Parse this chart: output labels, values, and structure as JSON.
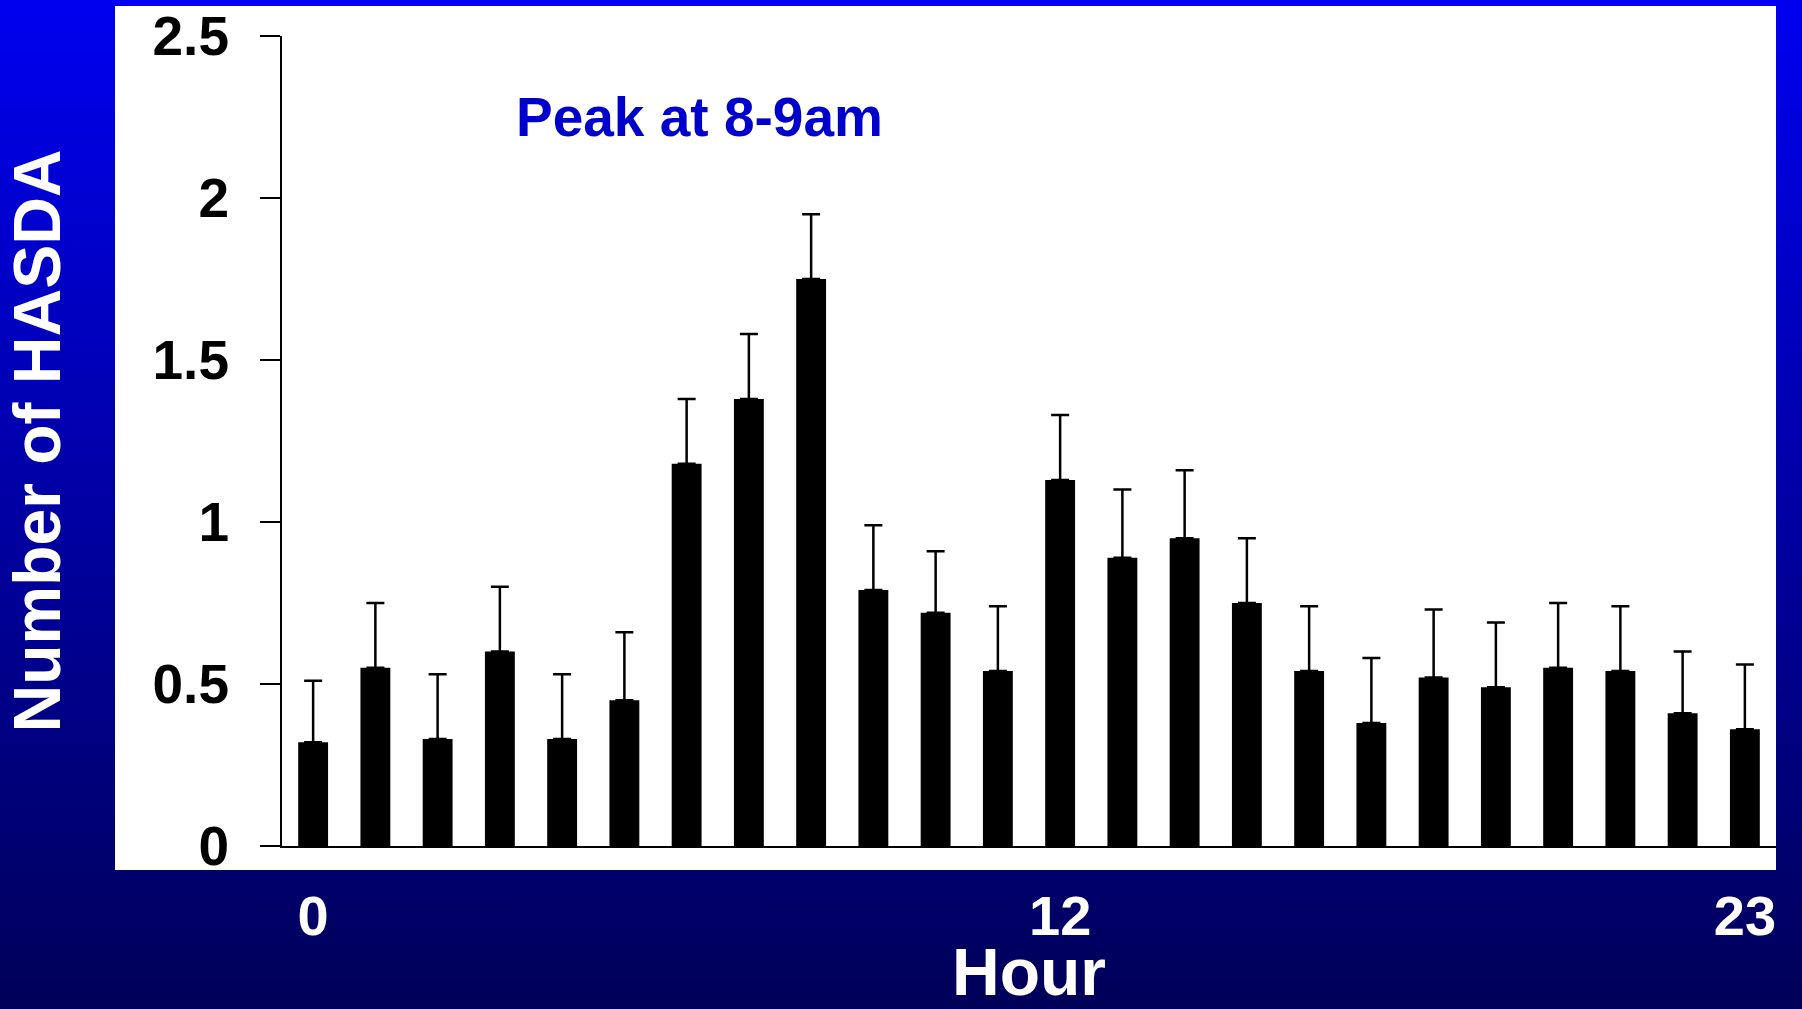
{
  "chart_data": {
    "type": "bar",
    "xlabel": "Hour",
    "ylabel": "Number of HASDA",
    "annotations": [
      "Peak at 8-9am"
    ],
    "x": [
      0,
      1,
      2,
      3,
      4,
      5,
      6,
      7,
      8,
      9,
      10,
      11,
      12,
      13,
      14,
      15,
      16,
      17,
      18,
      19,
      20,
      21,
      22,
      23
    ],
    "values": [
      0.32,
      0.55,
      0.33,
      0.6,
      0.33,
      0.45,
      1.18,
      1.38,
      1.75,
      0.79,
      0.72,
      0.54,
      1.13,
      0.89,
      0.95,
      0.75,
      0.54,
      0.38,
      0.52,
      0.49,
      0.55,
      0.54,
      0.41,
      0.36
    ],
    "errors": [
      [
        0.32,
        0.51
      ],
      [
        0.55,
        0.75
      ],
      [
        0.33,
        0.53
      ],
      [
        0.6,
        0.8
      ],
      [
        0.33,
        0.53
      ],
      [
        0.45,
        0.66
      ],
      [
        1.18,
        1.38
      ],
      [
        1.38,
        1.58
      ],
      [
        1.75,
        1.95
      ],
      [
        0.79,
        0.99
      ],
      [
        0.72,
        0.91
      ],
      [
        0.54,
        0.74
      ],
      [
        1.13,
        1.33
      ],
      [
        0.89,
        1.1
      ],
      [
        0.95,
        1.16
      ],
      [
        0.75,
        0.95
      ],
      [
        0.54,
        0.74
      ],
      [
        0.38,
        0.58
      ],
      [
        0.52,
        0.73
      ],
      [
        0.49,
        0.69
      ],
      [
        0.55,
        0.75
      ],
      [
        0.54,
        0.74
      ],
      [
        0.41,
        0.6
      ],
      [
        0.36,
        0.56
      ]
    ],
    "color": "#000000",
    "xlim": [
      -0.5,
      23.5
    ],
    "xticks": [
      0,
      12,
      23
    ],
    "ylim": [
      0,
      2.5
    ],
    "yticks": [
      0,
      0.5,
      1,
      1.5,
      2,
      2.5
    ],
    "grid": false
  }
}
